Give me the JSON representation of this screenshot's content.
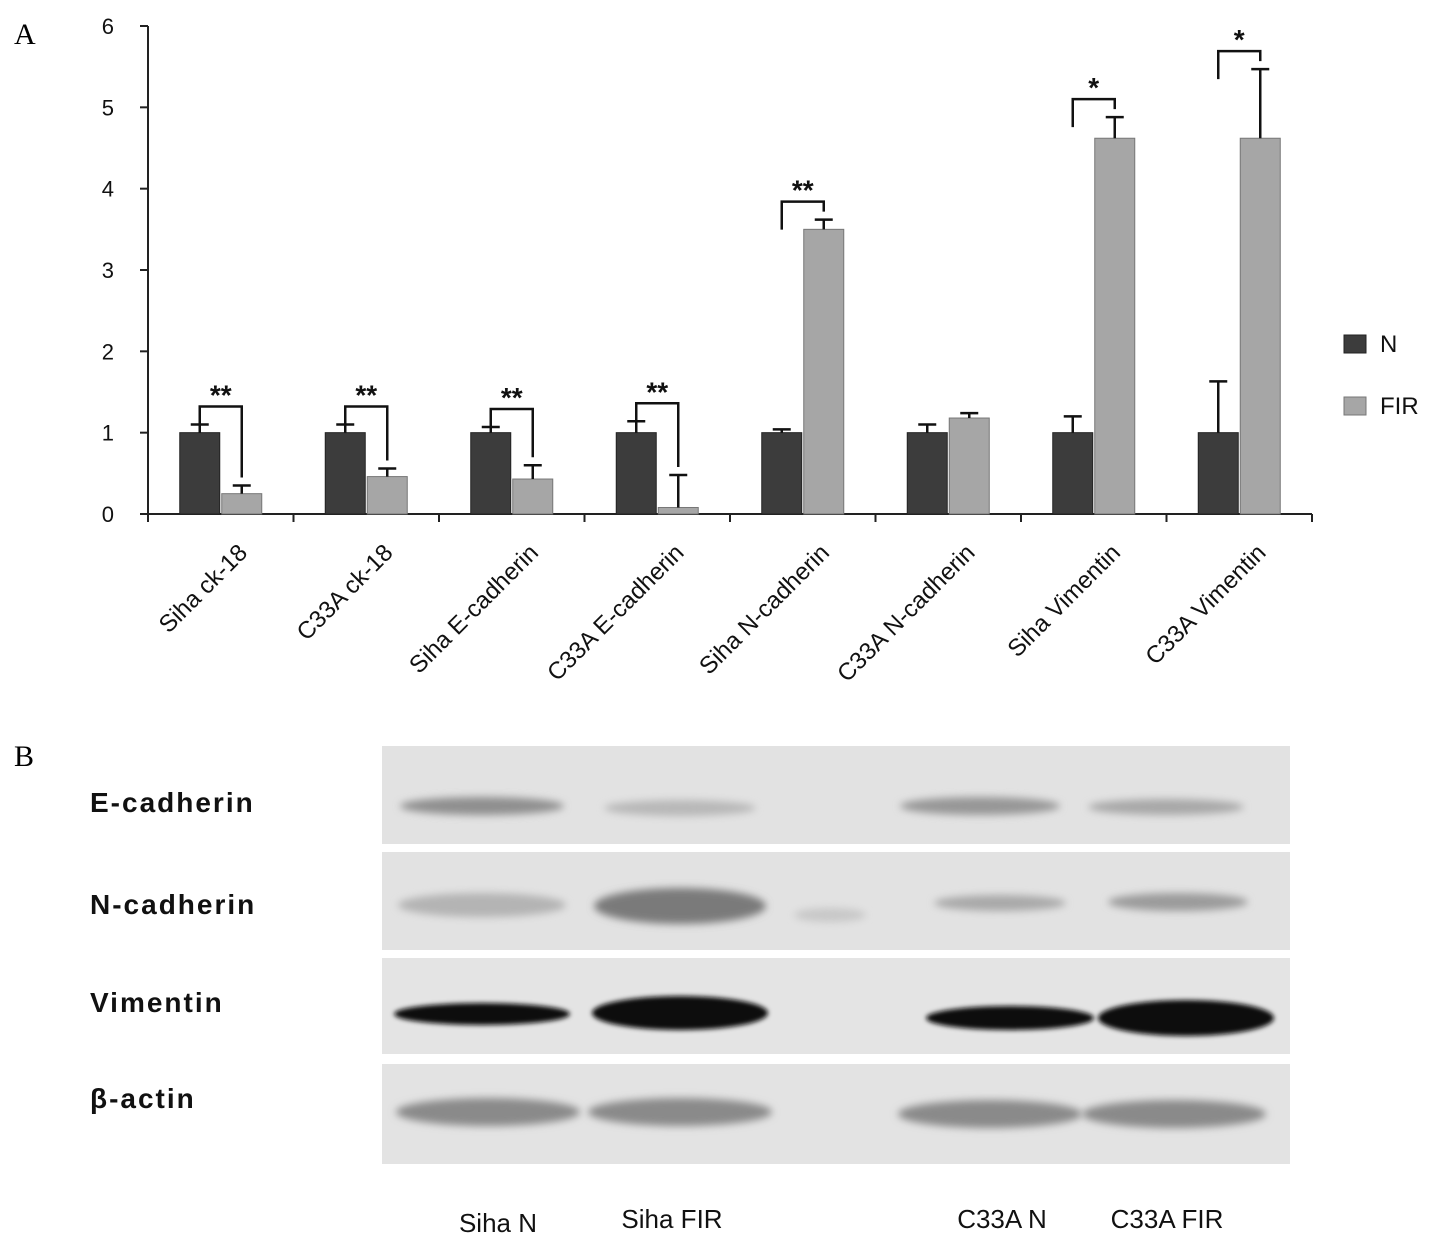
{
  "panels": {
    "a": "A",
    "b": "B"
  },
  "chart_data": {
    "type": "bar",
    "categories": [
      "Siha ck-18",
      "C33A ck-18",
      "Siha E-cadherin",
      "C33A E-cadherin",
      "Siha N-cadherin",
      "C33A N-cadherin",
      "Siha Vimentin",
      "C33A Vimentin"
    ],
    "series": [
      {
        "name": "N",
        "color": "#3c3c3c",
        "values": [
          1.0,
          1.0,
          1.0,
          1.0,
          1.0,
          1.0,
          1.0,
          1.0
        ],
        "errors": [
          0.1,
          0.1,
          0.07,
          0.14,
          0.04,
          0.1,
          0.2,
          0.63
        ]
      },
      {
        "name": "FIR",
        "color": "#a6a6a6",
        "values": [
          0.25,
          0.46,
          0.43,
          0.08,
          3.5,
          1.18,
          4.62,
          4.62
        ],
        "errors": [
          0.1,
          0.1,
          0.17,
          0.4,
          0.12,
          0.06,
          0.26,
          0.85
        ]
      }
    ],
    "significance": [
      "**",
      "**",
      "**",
      "**",
      "**",
      "",
      "*",
      "*"
    ],
    "ylim": [
      0,
      6
    ],
    "yticks": [
      0,
      1,
      2,
      3,
      4,
      5,
      6
    ],
    "title": "",
    "xlabel": "",
    "ylabel": "",
    "legend_position": "right",
    "grid": false
  },
  "blot": {
    "rows": [
      "E-cadherin",
      "N-cadherin",
      "Vimentin",
      "β-actin"
    ],
    "lanes": [
      "Siha N",
      "Siha FIR",
      "C33A N",
      "C33A FIR"
    ]
  }
}
